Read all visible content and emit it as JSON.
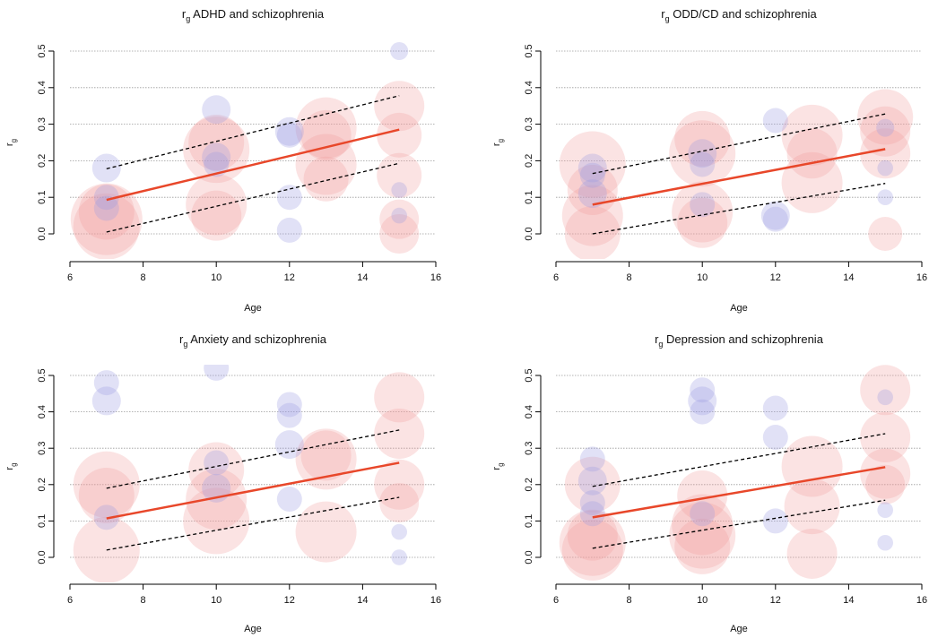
{
  "chart_data": [
    {
      "type": "scatter",
      "title_prefix": "r",
      "title_sub": "g",
      "title_text": "ADHD and schizophrenia",
      "xlabel": "Age",
      "ylabel_main": "r",
      "ylabel_sub": "g",
      "xlim": [
        6,
        16
      ],
      "ylim": [
        0,
        0.5
      ],
      "xticks": [
        "6",
        "8",
        "10",
        "12",
        "14",
        "16"
      ],
      "yticks": [
        "0.0",
        "0.1",
        "0.2",
        "0.3",
        "0.4",
        "0.5"
      ],
      "grid": true,
      "fit_line": {
        "x": [
          7,
          15
        ],
        "y": [
          0.093,
          0.285
        ]
      },
      "ci_upper": {
        "x": [
          7,
          15
        ],
        "y": [
          0.178,
          0.378
        ]
      },
      "ci_lower": {
        "x": [
          7,
          15
        ],
        "y": [
          0.005,
          0.193
        ]
      },
      "points_positive": [
        {
          "x": 7,
          "y": 0.04,
          "w": 1.0
        },
        {
          "x": 7,
          "y": 0.02,
          "w": 0.9
        },
        {
          "x": 7,
          "y": 0.06,
          "w": 0.7
        },
        {
          "x": 10,
          "y": 0.23,
          "w": 0.9
        },
        {
          "x": 10,
          "y": 0.08,
          "w": 0.8
        },
        {
          "x": 10,
          "y": 0.05,
          "w": 0.6
        },
        {
          "x": 10,
          "y": 0.25,
          "w": 0.7
        },
        {
          "x": 13,
          "y": 0.29,
          "w": 0.8
        },
        {
          "x": 13,
          "y": 0.19,
          "w": 0.8
        },
        {
          "x": 13,
          "y": 0.15,
          "w": 0.5
        },
        {
          "x": 13,
          "y": 0.27,
          "w": 0.6
        },
        {
          "x": 15,
          "y": 0.35,
          "w": 0.6
        },
        {
          "x": 15,
          "y": 0.27,
          "w": 0.5
        },
        {
          "x": 15,
          "y": 0.16,
          "w": 0.5
        },
        {
          "x": 15,
          "y": 0.04,
          "w": 0.4
        },
        {
          "x": 15,
          "y": 0.0,
          "w": 0.4
        }
      ],
      "points_negative": [
        {
          "x": 7,
          "y": 0.18,
          "w": 0.3
        },
        {
          "x": 7,
          "y": 0.1,
          "w": 0.25
        },
        {
          "x": 7,
          "y": 0.07,
          "w": 0.25
        },
        {
          "x": 10,
          "y": 0.34,
          "w": 0.3
        },
        {
          "x": 10,
          "y": 0.21,
          "w": 0.3
        },
        {
          "x": 10,
          "y": 0.19,
          "w": 0.25
        },
        {
          "x": 12,
          "y": 0.28,
          "w": 0.3
        },
        {
          "x": 12,
          "y": 0.27,
          "w": 0.25
        },
        {
          "x": 12,
          "y": 0.1,
          "w": 0.25
        },
        {
          "x": 12,
          "y": 0.01,
          "w": 0.25
        },
        {
          "x": 15,
          "y": 0.5,
          "w": 0.15
        },
        {
          "x": 15,
          "y": 0.12,
          "w": 0.12
        },
        {
          "x": 15,
          "y": 0.05,
          "w": 0.12
        }
      ]
    },
    {
      "type": "scatter",
      "title_prefix": "r",
      "title_sub": "g",
      "title_text": "ODD/CD and schizophrenia",
      "xlabel": "Age",
      "ylabel_main": "r",
      "ylabel_sub": "g",
      "xlim": [
        6,
        16
      ],
      "ylim": [
        0,
        0.5
      ],
      "xticks": [
        "6",
        "8",
        "10",
        "12",
        "14",
        "16"
      ],
      "yticks": [
        "0.0",
        "0.1",
        "0.2",
        "0.3",
        "0.4",
        "0.5"
      ],
      "grid": true,
      "fit_line": {
        "x": [
          7,
          15
        ],
        "y": [
          0.08,
          0.232
        ]
      },
      "ci_upper": {
        "x": [
          7,
          15
        ],
        "y": [
          0.165,
          0.328
        ]
      },
      "ci_lower": {
        "x": [
          7,
          15
        ],
        "y": [
          0.0,
          0.138
        ]
      },
      "points_positive": [
        {
          "x": 7,
          "y": 0.19,
          "w": 0.9
        },
        {
          "x": 7,
          "y": 0.05,
          "w": 0.8
        },
        {
          "x": 7,
          "y": 0.0,
          "w": 0.7
        },
        {
          "x": 7,
          "y": 0.12,
          "w": 0.6
        },
        {
          "x": 10,
          "y": 0.22,
          "w": 0.9
        },
        {
          "x": 10,
          "y": 0.26,
          "w": 0.7
        },
        {
          "x": 10,
          "y": 0.06,
          "w": 0.8
        },
        {
          "x": 10,
          "y": 0.03,
          "w": 0.6
        },
        {
          "x": 13,
          "y": 0.27,
          "w": 0.8
        },
        {
          "x": 13,
          "y": 0.14,
          "w": 0.8
        },
        {
          "x": 13,
          "y": 0.22,
          "w": 0.6
        },
        {
          "x": 15,
          "y": 0.32,
          "w": 0.7
        },
        {
          "x": 15,
          "y": 0.28,
          "w": 0.6
        },
        {
          "x": 15,
          "y": 0.22,
          "w": 0.6
        },
        {
          "x": 15,
          "y": 0.0,
          "w": 0.3
        }
      ],
      "points_negative": [
        {
          "x": 7,
          "y": 0.18,
          "w": 0.3
        },
        {
          "x": 7,
          "y": 0.11,
          "w": 0.3
        },
        {
          "x": 7,
          "y": 0.16,
          "w": 0.25
        },
        {
          "x": 10,
          "y": 0.22,
          "w": 0.3
        },
        {
          "x": 10,
          "y": 0.19,
          "w": 0.25
        },
        {
          "x": 10,
          "y": 0.08,
          "w": 0.25
        },
        {
          "x": 12,
          "y": 0.31,
          "w": 0.25
        },
        {
          "x": 12,
          "y": 0.05,
          "w": 0.3
        },
        {
          "x": 12,
          "y": 0.04,
          "w": 0.25
        },
        {
          "x": 15,
          "y": 0.29,
          "w": 0.15
        },
        {
          "x": 15,
          "y": 0.18,
          "w": 0.12
        },
        {
          "x": 15,
          "y": 0.1,
          "w": 0.12
        }
      ]
    },
    {
      "type": "scatter",
      "title_prefix": "r",
      "title_sub": "g",
      "title_text": "Anxiety and schizophrenia",
      "xlabel": "Age",
      "ylabel_main": "r",
      "ylabel_sub": "g",
      "xlim": [
        6,
        16
      ],
      "ylim": [
        0,
        0.5
      ],
      "xticks": [
        "6",
        "8",
        "10",
        "12",
        "14",
        "16"
      ],
      "yticks": [
        "0.0",
        "0.1",
        "0.2",
        "0.3",
        "0.4",
        "0.5"
      ],
      "grid": true,
      "fit_line": {
        "x": [
          7,
          15
        ],
        "y": [
          0.107,
          0.26
        ]
      },
      "ci_upper": {
        "x": [
          7,
          15
        ],
        "y": [
          0.19,
          0.35
        ]
      },
      "ci_lower": {
        "x": [
          7,
          15
        ],
        "y": [
          0.02,
          0.165
        ]
      },
      "points_positive": [
        {
          "x": 7,
          "y": 0.2,
          "w": 0.9
        },
        {
          "x": 7,
          "y": 0.02,
          "w": 0.9
        },
        {
          "x": 7,
          "y": 0.17,
          "w": 0.7
        },
        {
          "x": 10,
          "y": 0.1,
          "w": 0.9
        },
        {
          "x": 10,
          "y": 0.16,
          "w": 0.8
        },
        {
          "x": 10,
          "y": 0.24,
          "w": 0.7
        },
        {
          "x": 13,
          "y": 0.27,
          "w": 0.8
        },
        {
          "x": 13,
          "y": 0.07,
          "w": 0.8
        },
        {
          "x": 13,
          "y": 0.28,
          "w": 0.6
        },
        {
          "x": 15,
          "y": 0.44,
          "w": 0.6
        },
        {
          "x": 15,
          "y": 0.34,
          "w": 0.6
        },
        {
          "x": 15,
          "y": 0.2,
          "w": 0.6
        },
        {
          "x": 15,
          "y": 0.15,
          "w": 0.4
        }
      ],
      "points_negative": [
        {
          "x": 7,
          "y": 0.48,
          "w": 0.25
        },
        {
          "x": 7,
          "y": 0.43,
          "w": 0.3
        },
        {
          "x": 7,
          "y": 0.11,
          "w": 0.25
        },
        {
          "x": 10,
          "y": 0.52,
          "w": 0.25
        },
        {
          "x": 10,
          "y": 0.26,
          "w": 0.25
        },
        {
          "x": 10,
          "y": 0.19,
          "w": 0.3
        },
        {
          "x": 12,
          "y": 0.42,
          "w": 0.25
        },
        {
          "x": 12,
          "y": 0.39,
          "w": 0.25
        },
        {
          "x": 12,
          "y": 0.31,
          "w": 0.3
        },
        {
          "x": 12,
          "y": 0.16,
          "w": 0.25
        },
        {
          "x": 15,
          "y": 0.07,
          "w": 0.12
        },
        {
          "x": 15,
          "y": 0.0,
          "w": 0.12
        }
      ]
    },
    {
      "type": "scatter",
      "title_prefix": "r",
      "title_sub": "g",
      "title_text": "Depression and schizophrenia",
      "xlabel": "Age",
      "ylabel_main": "r",
      "ylabel_sub": "g",
      "xlim": [
        6,
        16
      ],
      "ylim": [
        0,
        0.5
      ],
      "xticks": [
        "6",
        "8",
        "10",
        "12",
        "14",
        "16"
      ],
      "yticks": [
        "0.0",
        "0.1",
        "0.2",
        "0.3",
        "0.4",
        "0.5"
      ],
      "grid": true,
      "fit_line": {
        "x": [
          7,
          15
        ],
        "y": [
          0.11,
          0.248
        ]
      },
      "ci_upper": {
        "x": [
          7,
          15
        ],
        "y": [
          0.195,
          0.34
        ]
      },
      "ci_lower": {
        "x": [
          7,
          15
        ],
        "y": [
          0.025,
          0.157
        ]
      },
      "points_positive": [
        {
          "x": 7,
          "y": 0.04,
          "w": 0.9
        },
        {
          "x": 7,
          "y": 0.02,
          "w": 0.8
        },
        {
          "x": 7,
          "y": 0.2,
          "w": 0.7
        },
        {
          "x": 7,
          "y": 0.06,
          "w": 0.6
        },
        {
          "x": 10,
          "y": 0.06,
          "w": 0.9
        },
        {
          "x": 10,
          "y": 0.09,
          "w": 0.8
        },
        {
          "x": 10,
          "y": 0.03,
          "w": 0.7
        },
        {
          "x": 10,
          "y": 0.17,
          "w": 0.6
        },
        {
          "x": 13,
          "y": 0.25,
          "w": 0.8
        },
        {
          "x": 13,
          "y": 0.14,
          "w": 0.7
        },
        {
          "x": 13,
          "y": 0.01,
          "w": 0.6
        },
        {
          "x": 15,
          "y": 0.46,
          "w": 0.6
        },
        {
          "x": 15,
          "y": 0.33,
          "w": 0.6
        },
        {
          "x": 15,
          "y": 0.23,
          "w": 0.6
        },
        {
          "x": 15,
          "y": 0.2,
          "w": 0.4
        }
      ],
      "points_negative": [
        {
          "x": 7,
          "y": 0.27,
          "w": 0.25
        },
        {
          "x": 7,
          "y": 0.21,
          "w": 0.3
        },
        {
          "x": 7,
          "y": 0.15,
          "w": 0.25
        },
        {
          "x": 7,
          "y": 0.12,
          "w": 0.25
        },
        {
          "x": 10,
          "y": 0.46,
          "w": 0.25
        },
        {
          "x": 10,
          "y": 0.43,
          "w": 0.3
        },
        {
          "x": 10,
          "y": 0.4,
          "w": 0.25
        },
        {
          "x": 10,
          "y": 0.12,
          "w": 0.25
        },
        {
          "x": 12,
          "y": 0.41,
          "w": 0.25
        },
        {
          "x": 12,
          "y": 0.33,
          "w": 0.25
        },
        {
          "x": 12,
          "y": 0.1,
          "w": 0.25
        },
        {
          "x": 15,
          "y": 0.44,
          "w": 0.12
        },
        {
          "x": 15,
          "y": 0.13,
          "w": 0.12
        },
        {
          "x": 15,
          "y": 0.04,
          "w": 0.12
        }
      ]
    }
  ],
  "colors": {
    "positive_point": "#f29a9a",
    "negative_point": "#9a9ae0",
    "fit_line": "#e8472a",
    "ci_line": "#000000",
    "grid": "#9a9a9a"
  }
}
